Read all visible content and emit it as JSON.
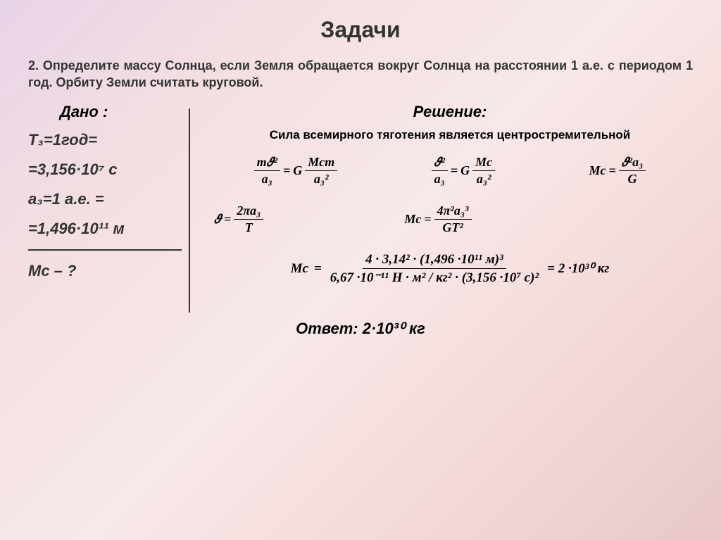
{
  "title": "Задачи",
  "problem": "2. Определите массу Солнца, если Земля обращается вокруг Солнца на расстоянии 1 а.е. с периодом 1 год. Орбиту Земли считать круговой.",
  "given": {
    "label": "Дано :",
    "t_line1": "T₃=1год=",
    "t_line2": "=3,156·10⁷ c",
    "a_line1": "а₃=1 а.е. =",
    "a_line2": "=1,496·10¹¹ м",
    "find": "Mс – ?"
  },
  "solution": {
    "label": "Решение:",
    "law": "Сила всемирного тяготения является центростремительной",
    "eq1": {
      "num": "m𝜗²",
      "den": "a₃",
      "rhs_num": "Mсm",
      "rhs_den": "a₃²",
      "G": "G"
    },
    "eq2": {
      "num": "𝜗²",
      "den": "a₃",
      "rhs_num": "Mс",
      "rhs_den": "a₃²",
      "G": "G"
    },
    "eq3": {
      "lhs": "Mс",
      "num": "𝜗²a₃",
      "den": "G"
    },
    "eq4": {
      "lhs": "𝜗",
      "num": "2πa₃",
      "den": "T"
    },
    "eq5": {
      "lhs": "Mс",
      "num": "4π²a₃³",
      "den": "GT²"
    },
    "final": {
      "lhs": "Mс",
      "num": "4 · 3,14² · (1,496 ·10¹¹ м)³",
      "den": "6,67 ·10⁻¹¹ Н · м² / кг² · (3,156 ·10⁷ с)²",
      "result": "= 2 ·10³⁰ кг"
    }
  },
  "answer": "Ответ: 2·10³⁰ кг"
}
